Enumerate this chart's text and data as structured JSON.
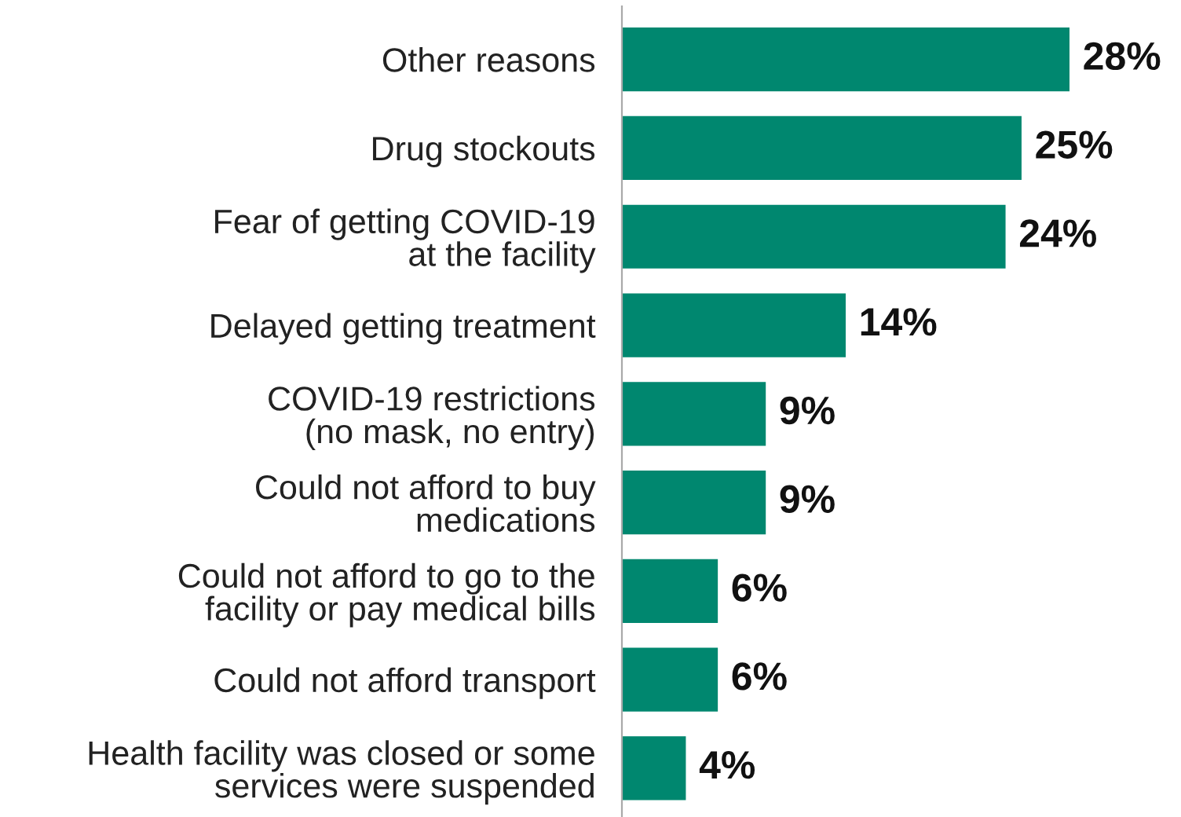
{
  "chart_data": {
    "type": "bar",
    "orientation": "horizontal",
    "categories": [
      "Other reasons",
      "Drug stockouts",
      "Fear of getting COVID-19\nat the facility",
      "Delayed getting treatment",
      "COVID-19 restrictions\n(no mask, no entry)",
      "Could not afford to buy\nmedications",
      "Could not afford to go to the\nfacility or pay medical bills",
      "Could not afford transport",
      "Health facility was closed or some\nservices were suspended"
    ],
    "values": [
      28,
      25,
      24,
      14,
      9,
      9,
      6,
      6,
      4
    ],
    "value_labels": [
      "28%",
      "25%",
      "24%",
      "14%",
      "9%",
      "9%",
      "6%",
      "6%",
      "4%"
    ],
    "color": "#00876f",
    "grid": false,
    "legend": false
  }
}
